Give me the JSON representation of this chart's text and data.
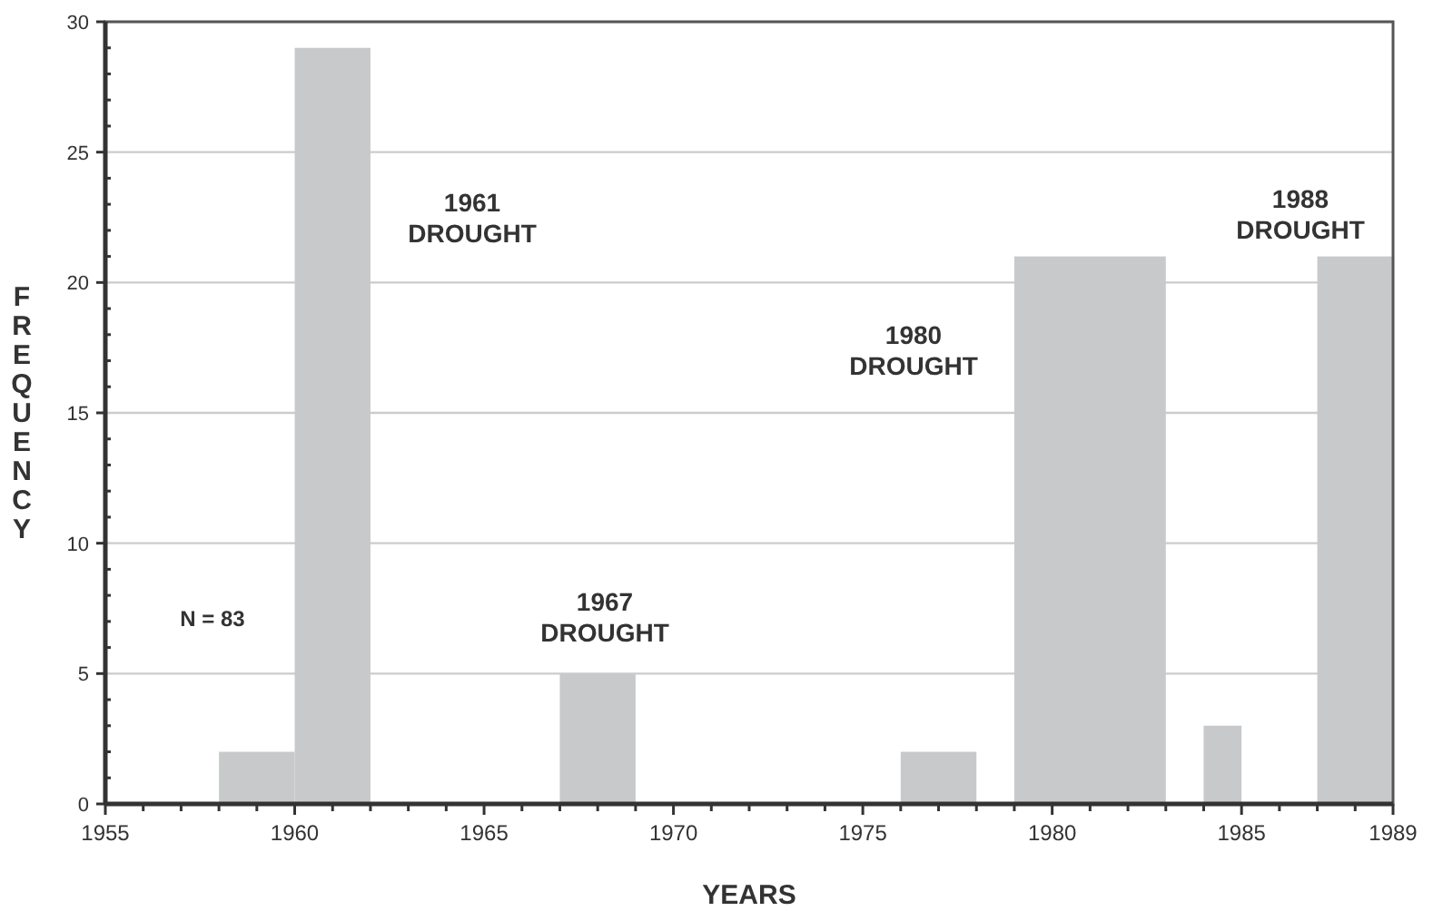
{
  "chart_data": {
    "type": "histogram",
    "xlabel": "YEARS",
    "ylabel": "FREQUENCY",
    "bins": [
      1958,
      1960,
      1962,
      1967,
      1969,
      1976,
      1978,
      1979,
      1983,
      1984,
      1985,
      1987,
      1989
    ],
    "values": [
      2,
      29,
      0,
      5,
      0,
      2,
      0,
      21,
      0,
      3,
      0,
      21
    ],
    "color": "#c8c9cb",
    "xlim": [
      1955,
      1989
    ],
    "xticks": [
      1955,
      {
        "value": 1956,
        "label": null
      },
      {
        "value": 1957,
        "label": null
      },
      {
        "value": 1958,
        "label": null
      },
      {
        "value": 1959,
        "label": null
      },
      1960,
      {
        "value": 1961,
        "label": null
      },
      {
        "value": 1962,
        "label": null
      },
      {
        "value": 1963,
        "label": null
      },
      {
        "value": 1964,
        "label": null
      },
      1965,
      {
        "value": 1966,
        "label": null
      },
      {
        "value": 1967,
        "label": null
      },
      {
        "value": 1968,
        "label": null
      },
      {
        "value": 1969,
        "label": null
      },
      1970,
      {
        "value": 1971,
        "label": null
      },
      {
        "value": 1972,
        "label": null
      },
      {
        "value": 1973,
        "label": null
      },
      {
        "value": 1974,
        "label": null
      },
      1975,
      {
        "value": 1976,
        "label": null
      },
      {
        "value": 1977,
        "label": null
      },
      {
        "value": 1978,
        "label": null
      },
      {
        "value": 1979,
        "label": null
      },
      1980,
      {
        "value": 1981,
        "label": null
      },
      {
        "value": 1982,
        "label": null
      },
      {
        "value": 1983,
        "label": null
      },
      {
        "value": 1984,
        "label": null
      },
      1985,
      {
        "value": 1986,
        "label": null
      },
      {
        "value": 1987,
        "label": null
      },
      {
        "value": 1988,
        "label": null
      },
      1989
    ],
    "ylim": [
      0,
      30
    ],
    "yticks": [
      0,
      {
        "value": 1,
        "label": null
      },
      {
        "value": 2,
        "label": null
      },
      {
        "value": 3,
        "label": null
      },
      {
        "value": 4,
        "label": null
      },
      5,
      {
        "value": 6,
        "label": null
      },
      {
        "value": 7,
        "label": null
      },
      {
        "value": 8,
        "label": null
      },
      {
        "value": 9,
        "label": null
      },
      10,
      {
        "value": 11,
        "label": null
      },
      {
        "value": 12,
        "label": null
      },
      {
        "value": 13,
        "label": null
      },
      {
        "value": 14,
        "label": null
      },
      15,
      {
        "value": 16,
        "label": null
      },
      {
        "value": 17,
        "label": null
      },
      {
        "value": 18,
        "label": null
      },
      {
        "value": 19,
        "label": null
      },
      20,
      {
        "value": 21,
        "label": null
      },
      {
        "value": 22,
        "label": null
      },
      {
        "value": 23,
        "label": null
      },
      {
        "value": 24,
        "label": null
      },
      25,
      {
        "value": 26,
        "label": null
      },
      {
        "value": 27,
        "label": null
      },
      {
        "value": 28,
        "label": null
      },
      {
        "value": 29,
        "label": null
      },
      30
    ],
    "grid": "y",
    "annotations": [
      "N = 83",
      "1961 DROUGHT",
      "1967 DROUGHT",
      "1980 DROUGHT",
      "1988 DROUGHT"
    ]
  }
}
